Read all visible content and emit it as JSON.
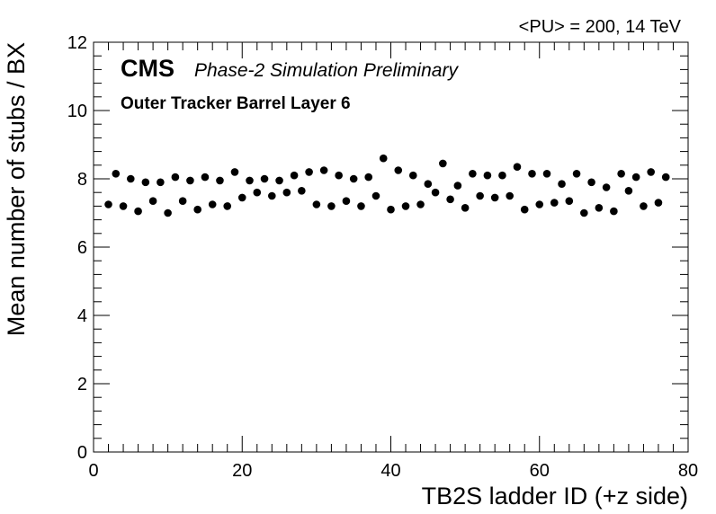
{
  "header": {
    "top_right": "<PU> = 200,  14 TeV",
    "brand": "CMS",
    "brand_sub": "Phase-2 Simulation Preliminary",
    "layer": "Outer Tracker Barrel Layer 6"
  },
  "chart_data": {
    "type": "scatter",
    "xlabel": "TB2S ladder ID (+z side)",
    "ylabel": "Mean number of stubs / BX",
    "xlim": [
      0,
      80
    ],
    "ylim": [
      0,
      12
    ],
    "x_ticks": [
      0,
      20,
      40,
      60,
      80
    ],
    "y_ticks": [
      0,
      2,
      4,
      6,
      8,
      10,
      12
    ],
    "x_minor_step": 2,
    "y_minor_step": 0.4,
    "grid": false,
    "marker_color": "#000000",
    "series": [
      {
        "x": [
          2,
          3,
          4,
          5,
          6,
          7,
          8,
          9,
          10,
          11,
          12,
          13,
          14,
          15,
          16,
          17,
          18,
          19,
          20,
          21,
          22,
          23,
          24,
          25,
          26,
          27,
          28,
          29,
          30,
          31,
          32,
          33,
          34,
          35,
          36,
          37,
          38,
          39,
          40,
          41,
          42,
          43,
          44,
          45,
          46,
          47,
          48,
          49,
          50,
          51,
          52,
          53,
          54,
          55,
          56,
          57,
          58,
          59,
          60,
          61,
          62,
          63,
          64,
          65,
          66,
          67,
          68,
          69,
          70,
          71,
          72,
          73,
          74,
          75,
          76,
          77
        ],
        "y": [
          7.25,
          8.15,
          7.2,
          8.0,
          7.05,
          7.9,
          7.35,
          7.9,
          7.0,
          8.05,
          7.35,
          7.95,
          7.1,
          8.05,
          7.25,
          7.95,
          7.2,
          8.2,
          7.45,
          7.95,
          7.6,
          8.0,
          7.5,
          7.95,
          7.6,
          8.1,
          7.65,
          8.2,
          7.25,
          8.25,
          7.2,
          8.1,
          7.35,
          8.0,
          7.2,
          8.05,
          7.5,
          8.6,
          7.1,
          8.25,
          7.2,
          8.1,
          7.25,
          7.85,
          7.6,
          8.45,
          7.4,
          7.8,
          7.15,
          8.15,
          7.5,
          8.1,
          7.45,
          8.1,
          7.5,
          8.35,
          7.1,
          8.15,
          7.25,
          8.15,
          7.3,
          7.85,
          7.35,
          8.15,
          7.0,
          7.9,
          7.15,
          7.75,
          7.05,
          8.15,
          7.65,
          8.05,
          7.2,
          8.2,
          7.3,
          8.05
        ]
      }
    ]
  }
}
